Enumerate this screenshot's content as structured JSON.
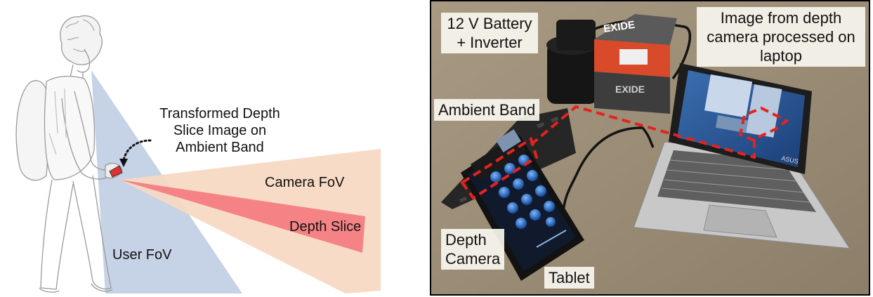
{
  "left_diagram": {
    "annotation": {
      "line1": "Transformed Depth",
      "line2": "Slice Image on",
      "line3": "Ambient Band"
    },
    "camera_fov_label": "Camera FoV",
    "depth_slice_label": "Depth Slice",
    "user_fov_label": "User FoV",
    "colors": {
      "user_fov": "#c6d2e6",
      "camera_fov": "#f6d8c2",
      "depth_slice": "#f47c80",
      "band": "#e03030"
    }
  },
  "photo": {
    "battery_label": {
      "line1": "12 V Battery",
      "line2": "+ Inverter"
    },
    "laptop_label": {
      "line1": "Image from depth",
      "line2": "camera processed on",
      "line3": "laptop"
    },
    "battery_brand": "EXIDE",
    "ambient_band_label": "Ambient Band",
    "depth_camera_label": {
      "line1": "Depth",
      "line2": "Camera"
    },
    "tablet_label": "Tablet",
    "laptop_brand": "ASUS",
    "colors": {
      "callout_dash": "#e4231f",
      "frame": "#000000"
    }
  }
}
